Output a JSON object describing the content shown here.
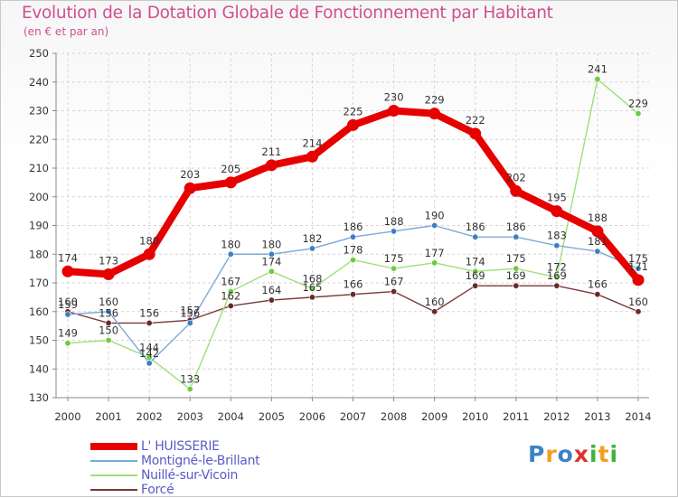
{
  "header": {
    "title": "Evolution de la Dotation Globale de Fonctionnement par Habitant",
    "subtitle": "(en € et par an)"
  },
  "brand": {
    "text": "Proxiti",
    "letters": [
      "P",
      "r",
      "o",
      "x",
      "i",
      "t",
      "i"
    ],
    "colors": [
      "#3c82c8",
      "#f0a020",
      "#3c82c8",
      "#e03030",
      "#3cb43c",
      "#f0a020",
      "#3cb43c"
    ]
  },
  "chart_data": {
    "type": "line",
    "title": "Evolution de la Dotation Globale de Fonctionnement par Habitant",
    "subtitle": "(en € et par an)",
    "xlabel": "",
    "ylabel": "",
    "x": [
      "2000",
      "2001",
      "2002",
      "2003",
      "2004",
      "2005",
      "2006",
      "2007",
      "2008",
      "2009",
      "2010",
      "2011",
      "2012",
      "2013",
      "2014"
    ],
    "ylim": [
      130,
      250
    ],
    "yticks": [
      130,
      140,
      150,
      160,
      170,
      180,
      190,
      200,
      210,
      220,
      230,
      240,
      250
    ],
    "grid": true,
    "series": [
      {
        "name": "L' HUISSERIE",
        "color": "#e60000",
        "marker_color": "#e60000",
        "weight": "thick",
        "values": [
          174,
          173,
          180,
          203,
          205,
          211,
          214,
          225,
          230,
          229,
          222,
          202,
          195,
          188,
          171
        ],
        "labels": [
          "174",
          "173",
          "180",
          "203",
          "205",
          "211",
          "214",
          "225",
          "230",
          "229",
          "222",
          "202",
          "195",
          "188",
          "171"
        ]
      },
      {
        "name": "Montigné-le-Brillant",
        "color": "#7aaad8",
        "marker_color": "#3c7fc4",
        "weight": "thin",
        "values": [
          159,
          160,
          142,
          156,
          180,
          180,
          182,
          186,
          188,
          190,
          186,
          186,
          183,
          181,
          175
        ],
        "labels": [
          "159",
          "160",
          "142",
          "156",
          "180",
          "180",
          "182",
          "186",
          "188",
          "190",
          "186",
          "186",
          "183",
          "181",
          "175"
        ]
      },
      {
        "name": "Nuillé-sur-Vicoin",
        "color": "#9ee07a",
        "marker_color": "#6ccc3c",
        "weight": "thin",
        "values": [
          149,
          150,
          144,
          133,
          167,
          174,
          168,
          178,
          175,
          177,
          174,
          175,
          172,
          241,
          229
        ],
        "labels": [
          "149",
          "150",
          "144",
          "133",
          "167",
          "174",
          "168",
          "178",
          "175",
          "177",
          "174",
          "175",
          "172",
          "241",
          "229"
        ]
      },
      {
        "name": "Forcé",
        "color": "#7a3838",
        "marker_color": "#6a2828",
        "weight": "thin",
        "values": [
          160,
          156,
          156,
          157,
          162,
          164,
          165,
          166,
          167,
          160,
          169,
          169,
          169,
          166,
          160
        ],
        "labels": [
          "160",
          "156",
          "156",
          "157",
          "162",
          "164",
          "165",
          "166",
          "167",
          "160",
          "169",
          "169",
          "169",
          "166",
          "160"
        ]
      }
    ],
    "legend_position": "bottom-left"
  }
}
